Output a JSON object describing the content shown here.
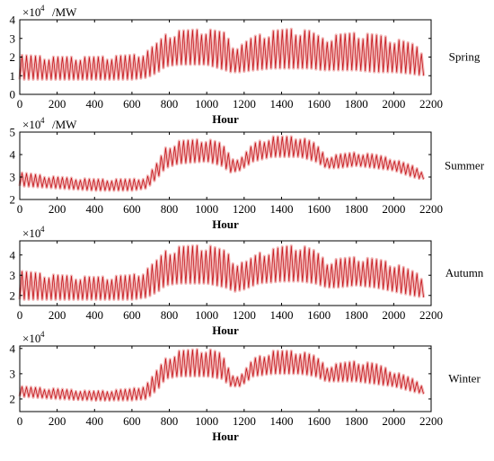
{
  "chart_data": [
    {
      "type": "line",
      "season_label": "Spring",
      "xlabel": "Hour",
      "multiplier_base": "×10",
      "multiplier_exp": "4",
      "unit": "/MW",
      "xlim": [
        0,
        2200
      ],
      "ylim": [
        0,
        4
      ],
      "xticks": [
        0,
        200,
        400,
        600,
        800,
        1000,
        1200,
        1400,
        1600,
        1800,
        2000,
        2200
      ],
      "yticks": [
        0,
        1,
        2,
        3,
        4
      ],
      "envelope": {
        "x": [
          0,
          200,
          400,
          600,
          680,
          740,
          780,
          850,
          1000,
          1100,
          1130,
          1180,
          1250,
          1350,
          1450,
          1550,
          1620,
          1700,
          1800,
          1900,
          2000,
          2100,
          2160
        ],
        "min": [
          0.8,
          0.8,
          0.8,
          0.8,
          0.9,
          1.2,
          1.5,
          1.6,
          1.6,
          1.3,
          1.2,
          1.2,
          1.3,
          1.4,
          1.4,
          1.4,
          1.3,
          1.3,
          1.3,
          1.2,
          1.2,
          1.1,
          1.0
        ],
        "max": [
          2.1,
          2.0,
          2.0,
          2.1,
          2.3,
          2.8,
          3.2,
          3.4,
          3.5,
          3.3,
          2.7,
          2.6,
          3.1,
          3.4,
          3.5,
          3.4,
          3.0,
          3.2,
          3.3,
          3.2,
          3.0,
          2.7,
          2.3
        ]
      }
    },
    {
      "type": "line",
      "season_label": "Summer",
      "xlabel": "Hour",
      "multiplier_base": "×10",
      "multiplier_exp": "4",
      "unit": "/MW",
      "xlim": [
        0,
        2200
      ],
      "ylim": [
        2,
        5
      ],
      "xticks": [
        0,
        200,
        400,
        600,
        800,
        1000,
        1200,
        1400,
        1600,
        1800,
        2000,
        2200
      ],
      "yticks": [
        2,
        3,
        4,
        5
      ],
      "envelope": {
        "x": [
          0,
          200,
          400,
          600,
          680,
          740,
          780,
          850,
          1000,
          1080,
          1130,
          1180,
          1250,
          1350,
          1500,
          1580,
          1640,
          1700,
          1800,
          1900,
          2000,
          2100,
          2160
        ],
        "min": [
          2.6,
          2.5,
          2.4,
          2.4,
          2.5,
          3.0,
          3.4,
          3.6,
          3.7,
          3.5,
          3.2,
          3.3,
          3.7,
          3.9,
          3.9,
          3.7,
          3.4,
          3.4,
          3.5,
          3.4,
          3.3,
          3.0,
          2.9
        ],
        "max": [
          3.2,
          3.0,
          2.9,
          2.9,
          3.0,
          3.7,
          4.3,
          4.6,
          4.7,
          4.5,
          3.9,
          3.8,
          4.5,
          4.8,
          4.8,
          4.5,
          3.9,
          4.0,
          4.1,
          4.0,
          3.8,
          3.5,
          3.2
        ]
      }
    },
    {
      "type": "line",
      "season_label": "Autumn",
      "xlabel": "Hour",
      "multiplier_base": "×10",
      "multiplier_exp": "4",
      "unit": "",
      "xlim": [
        0,
        2200
      ],
      "ylim": [
        1.5,
        4.7
      ],
      "xticks": [
        0,
        200,
        400,
        600,
        800,
        1000,
        1200,
        1400,
        1600,
        1800,
        2000,
        2200
      ],
      "yticks": [
        2,
        3,
        4
      ],
      "envelope": {
        "x": [
          0,
          200,
          400,
          600,
          680,
          740,
          780,
          850,
          1000,
          1100,
          1150,
          1200,
          1280,
          1400,
          1500,
          1580,
          1640,
          1700,
          1800,
          1900,
          2000,
          2100,
          2160
        ],
        "min": [
          1.8,
          1.8,
          1.8,
          1.8,
          1.9,
          2.2,
          2.5,
          2.6,
          2.6,
          2.4,
          2.2,
          2.3,
          2.6,
          2.7,
          2.7,
          2.6,
          2.4,
          2.4,
          2.5,
          2.4,
          2.2,
          2.0,
          1.9
        ],
        "max": [
          3.2,
          3.0,
          2.9,
          3.0,
          3.3,
          3.8,
          4.2,
          4.4,
          4.5,
          4.2,
          3.7,
          3.6,
          4.1,
          4.4,
          4.5,
          4.2,
          3.7,
          3.8,
          3.9,
          3.8,
          3.6,
          3.2,
          2.9
        ]
      }
    },
    {
      "type": "line",
      "season_label": "Winter",
      "xlabel": "Hour",
      "multiplier_base": "×10",
      "multiplier_exp": "4",
      "unit": "",
      "xlim": [
        0,
        2200
      ],
      "ylim": [
        1.5,
        4.1
      ],
      "xticks": [
        0,
        200,
        400,
        600,
        800,
        1000,
        1200,
        1400,
        1600,
        1800,
        2000,
        2200
      ],
      "yticks": [
        2,
        3,
        4
      ],
      "envelope": {
        "x": [
          0,
          200,
          400,
          600,
          680,
          740,
          780,
          850,
          1000,
          1080,
          1130,
          1180,
          1250,
          1350,
          1500,
          1580,
          1640,
          1700,
          1800,
          1900,
          2000,
          2100,
          2160
        ],
        "min": [
          2.1,
          2.0,
          1.95,
          1.95,
          2.0,
          2.4,
          2.8,
          2.9,
          2.9,
          2.8,
          2.5,
          2.5,
          2.9,
          3.0,
          3.0,
          2.9,
          2.7,
          2.7,
          2.7,
          2.6,
          2.5,
          2.3,
          2.2
        ],
        "max": [
          2.5,
          2.4,
          2.3,
          2.4,
          2.6,
          3.2,
          3.6,
          3.9,
          4.0,
          3.8,
          3.0,
          2.9,
          3.6,
          3.9,
          3.9,
          3.7,
          3.3,
          3.4,
          3.5,
          3.4,
          3.1,
          2.8,
          2.5
        ]
      }
    }
  ]
}
